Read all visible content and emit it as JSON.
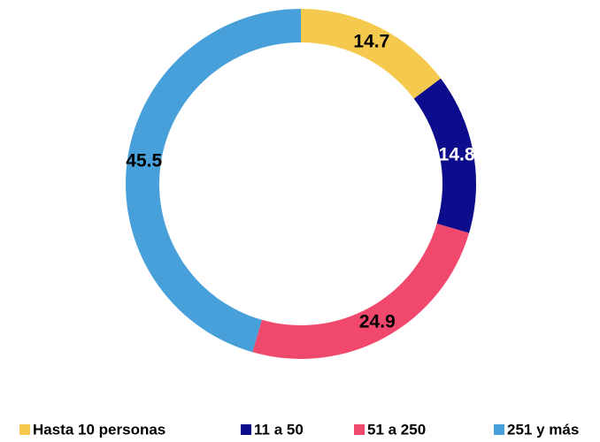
{
  "chart_data": {
    "type": "donut",
    "categories": [
      "Hasta 10 personas",
      "11 a 50",
      "51 a 250",
      "251 y más"
    ],
    "values": [
      14.7,
      14.8,
      24.9,
      45.5
    ],
    "colors": [
      "#f5c94e",
      "#0c0c8c",
      "#f0496d",
      "#48a0da"
    ],
    "legend": "bottom"
  }
}
